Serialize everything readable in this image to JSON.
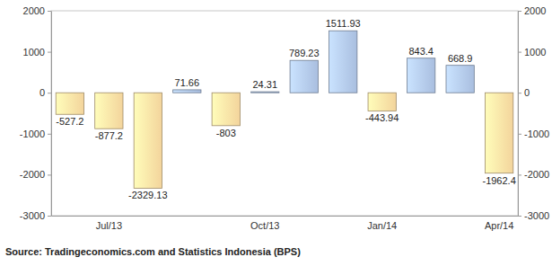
{
  "chart_data": {
    "type": "bar",
    "categories": [
      null,
      "Jul/13",
      null,
      null,
      null,
      "Oct/13",
      null,
      null,
      "Jan/14",
      null,
      null,
      "Apr/14"
    ],
    "values": [
      -527.2,
      -877.2,
      -2329.13,
      71.66,
      -803,
      24.31,
      789.23,
      1511.93,
      -443.94,
      843.4,
      668.9,
      -1962.4
    ],
    "colors": [
      "#f3d49c",
      "#f3d49c",
      "#f3d49c",
      "#a9bedf",
      "#f3d49c",
      "#a9bedf",
      "#a9bedf",
      "#a9bedf",
      "#f3d49c",
      "#a9bedf",
      "#a9bedf",
      "#f3d49c"
    ],
    "ylim": [
      -3000,
      2000
    ],
    "yticks": [
      -3000,
      -2000,
      -1000,
      0,
      1000,
      2000
    ],
    "grid": false,
    "data_labels": true,
    "source": "Source: Tradingeconomics.com and Statistics Indonesia (BPS)"
  }
}
